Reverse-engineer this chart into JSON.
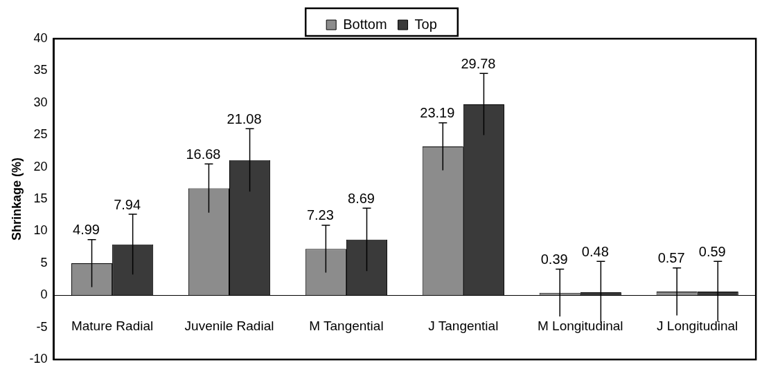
{
  "chart_data": {
    "type": "bar",
    "ylabel": "Shrinkage (%)",
    "categories": [
      "Mature Radial",
      "Juvenile Radial",
      "M Tangential",
      "J Tangential",
      "M Longitudinal",
      "J Longitudinal"
    ],
    "series": [
      {
        "name": "Bottom",
        "color": "#8c8c8c",
        "values": [
          4.99,
          16.68,
          7.23,
          23.19,
          0.39,
          0.57
        ],
        "errors": [
          3.7,
          3.8,
          3.7,
          3.7,
          3.7,
          3.7
        ]
      },
      {
        "name": "Top",
        "color": "#3a3a3a",
        "values": [
          7.94,
          21.08,
          8.69,
          29.78,
          0.48,
          0.59
        ],
        "errors": [
          4.7,
          4.9,
          4.9,
          4.8,
          4.8,
          4.7
        ]
      }
    ],
    "ylim": [
      -10,
      40
    ],
    "yticks": [
      -10,
      -5,
      0,
      5,
      10,
      15,
      20,
      25,
      30,
      35,
      40
    ],
    "data_labels": true,
    "grid": false,
    "legend": "top"
  }
}
